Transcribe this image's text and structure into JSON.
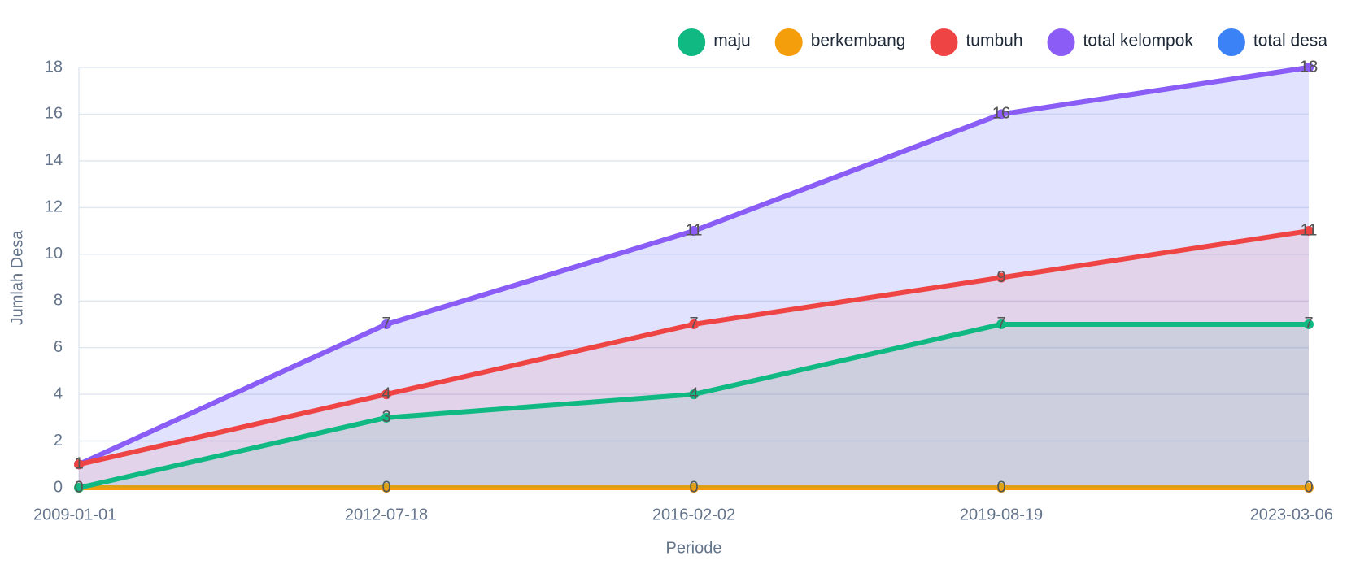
{
  "chart_data": {
    "type": "line",
    "x_label": "Periode",
    "y_label": "Jumlah Desa",
    "categories": [
      "2009-01-01",
      "2012-07-18",
      "2016-02-02",
      "2019-08-19",
      "2023-03-06"
    ],
    "series": [
      {
        "name": "maju",
        "color": "#10b981",
        "values": [
          0,
          3,
          4,
          7,
          7
        ]
      },
      {
        "name": "berkembang",
        "color": "#f59e0b",
        "values": [
          0,
          0,
          0,
          0,
          0
        ]
      },
      {
        "name": "tumbuh",
        "color": "#ef4444",
        "values": [
          1,
          4,
          7,
          9,
          11
        ]
      },
      {
        "name": "total kelompok",
        "color": "#8b5cf6",
        "values": [
          1,
          7,
          11,
          16,
          18
        ]
      },
      {
        "name": "total desa",
        "color": "#3b82f6",
        "values": [
          1,
          7,
          11,
          16,
          18
        ]
      }
    ],
    "ylim": [
      0,
      18
    ],
    "yticks": [
      0,
      2,
      4,
      6,
      8,
      10,
      12,
      14,
      16,
      18
    ],
    "grid": true,
    "fill": true,
    "legend": "top-right"
  }
}
